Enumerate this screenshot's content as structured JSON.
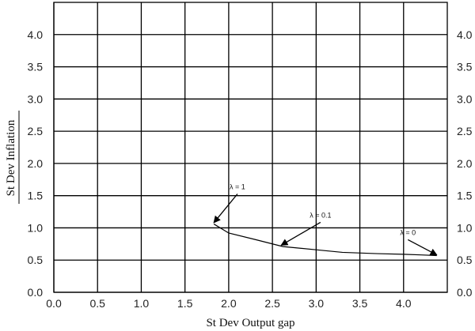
{
  "chart_data": {
    "type": "line",
    "title": "",
    "xlabel": "St Dev Output gap",
    "ylabel": "St Dev Inflation",
    "xlim": [
      0.0,
      4.5
    ],
    "ylim": [
      0.0,
      4.5
    ],
    "x_ticks": [
      "0.0",
      "0.5",
      "1.0",
      "1.5",
      "2.0",
      "2.5",
      "3.0",
      "3.5",
      "4.0"
    ],
    "y_ticks": [
      "0.0",
      "0.5",
      "1.0",
      "1.5",
      "2.0",
      "2.5",
      "3.0",
      "3.5",
      "4.0"
    ],
    "grid": true,
    "series": [
      {
        "x": [
          1.83,
          2.0,
          2.3,
          2.62,
          3.0,
          3.3,
          3.7,
          4.0,
          4.2,
          4.38
        ],
        "y": [
          1.06,
          0.92,
          0.82,
          0.71,
          0.66,
          0.62,
          0.6,
          0.59,
          0.58,
          0.57
        ]
      }
    ],
    "annotations": [
      {
        "text": "λ = 1",
        "x": 2.1,
        "y": 1.6,
        "arrow_to": [
          1.83,
          1.08
        ]
      },
      {
        "text": "λ = 0.1",
        "x": 3.05,
        "y": 1.16,
        "arrow_to": [
          2.6,
          0.73
        ]
      },
      {
        "text": "λ = 0",
        "x": 4.05,
        "y": 0.89,
        "arrow_to": [
          4.38,
          0.58
        ]
      }
    ]
  }
}
